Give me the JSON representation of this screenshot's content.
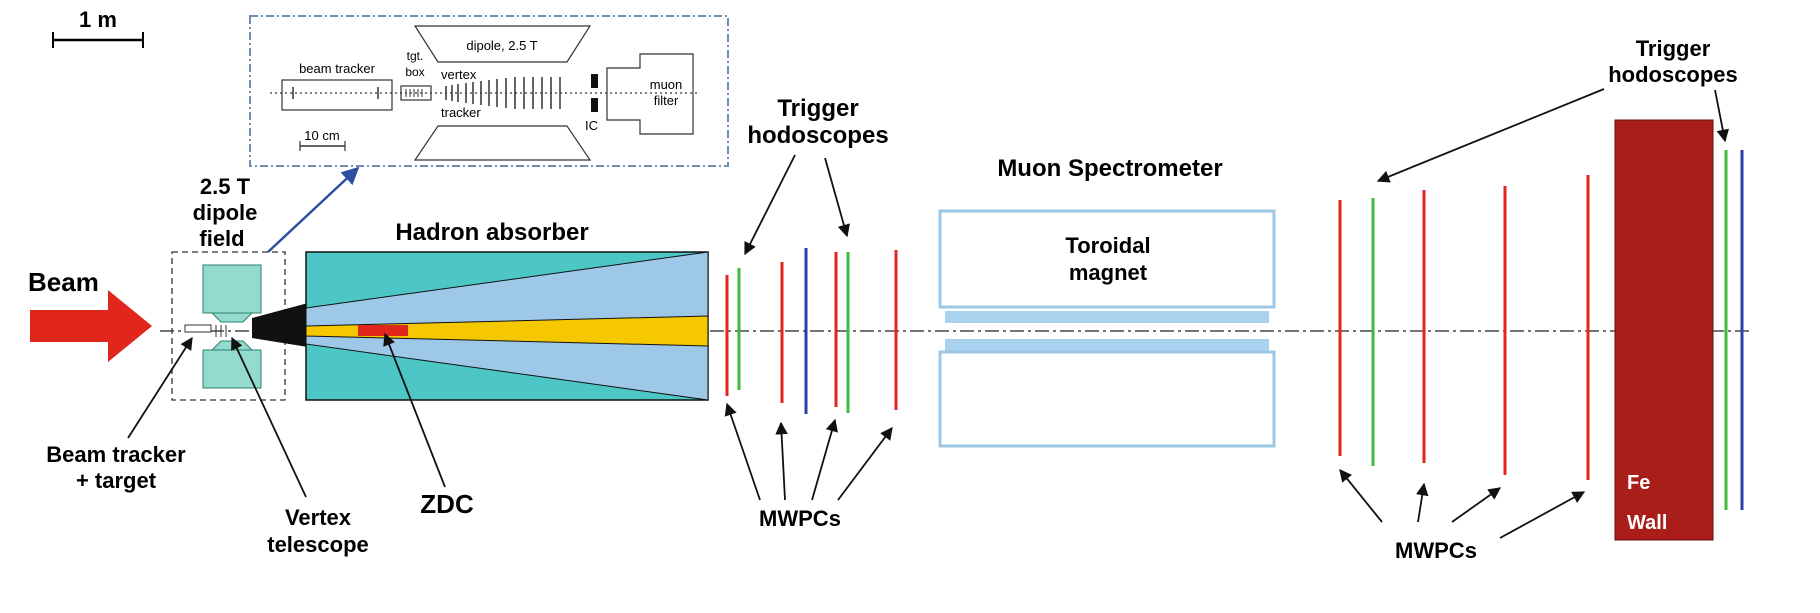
{
  "scale_bar": {
    "label": "1 m"
  },
  "inset": {
    "beam_tracker": "beam tracker",
    "tgt_line1": "tgt.",
    "tgt_line2": "box",
    "dipole": "dipole, 2.5 T",
    "vertex_line1": "vertex",
    "vertex_line2": "tracker",
    "ic": "IC",
    "muon_line1": "muon",
    "muon_line2": "filter",
    "scale": "10 cm"
  },
  "labels": {
    "beam": "Beam",
    "dipole_line1": "2.5 T",
    "dipole_line2": "dipole",
    "dipole_line3": "field",
    "hadron_absorber": "Hadron absorber",
    "trigger1_line1": "Trigger",
    "trigger1_line2": "hodoscopes",
    "muon_spectrometer": "Muon Spectrometer",
    "toroidal_line1": "Toroidal",
    "toroidal_line2": "magnet",
    "trigger2_line1": "Trigger",
    "trigger2_line2": "hodoscopes",
    "beam_tracker_line1": "Beam tracker",
    "beam_tracker_line2": "+ target",
    "vertex_line1": "Vertex",
    "vertex_line2": "telescope",
    "zdc": "ZDC",
    "mwpcs1": "MWPCs",
    "mwpcs2": "MWPCs",
    "fe_line1": "Fe",
    "fe_line2": "Wall"
  },
  "colors": {
    "beam_arrow": "#e1261c",
    "magnet": "#93dccd",
    "absorber_outer": "#4dc6c6",
    "absorber_inner": "#9ec8e8",
    "absorber_core": "#f5c800",
    "zdc": "#e1261c",
    "toroid_outline": "#9cc8e6",
    "toroid_fill": "#a8d2ee",
    "mwpc": "#e1261c",
    "hodoscope": "#3dbb3d",
    "blue_plane": "#2b3fa8",
    "fe_wall": "#aa1e1a",
    "inset_border": "#6f8fb5",
    "inset_arrow": "#2c4fa0"
  }
}
